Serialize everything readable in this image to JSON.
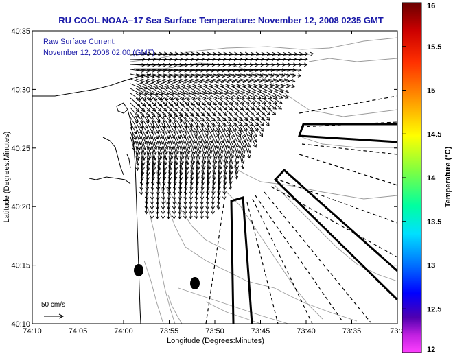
{
  "title": "RU COOL  NOAA–17  Sea Surface Temperature:  November 12, 2008 0235 GMT",
  "annotation": {
    "line1": "Raw Surface Current:",
    "line2": "November 12, 2008 02:00 (GMT)"
  },
  "x_axis": {
    "label": "Longitude (Degrees:Minutes)",
    "ticks": [
      "74:10",
      "74:05",
      "74:00",
      "73:55",
      "73:50",
      "73:45",
      "73:40",
      "73:35",
      "73:3"
    ]
  },
  "y_axis": {
    "label": "Latitude (Degrees:Minutes)",
    "ticks": [
      "40:35",
      "40:30",
      "40:25",
      "40:20",
      "40:15",
      "40:10"
    ]
  },
  "colorbar": {
    "label": "Temperature (°C)",
    "ticks": [
      "16",
      "15.5",
      "15",
      "14.5",
      "14",
      "13.5",
      "13",
      "12.5",
      "12"
    ],
    "colors": [
      "#8b0000",
      "#ff0000",
      "#ff8000",
      "#ffff00",
      "#80ff00",
      "#00ff80",
      "#00ffff",
      "#0080ff",
      "#0000ff",
      "#4000a0",
      "#ff00ff"
    ]
  },
  "scale_label": "50 cm/s",
  "colors": {
    "title": "#1a1aa8",
    "contour": "#9a9a9a",
    "land": "#ffffff"
  }
}
